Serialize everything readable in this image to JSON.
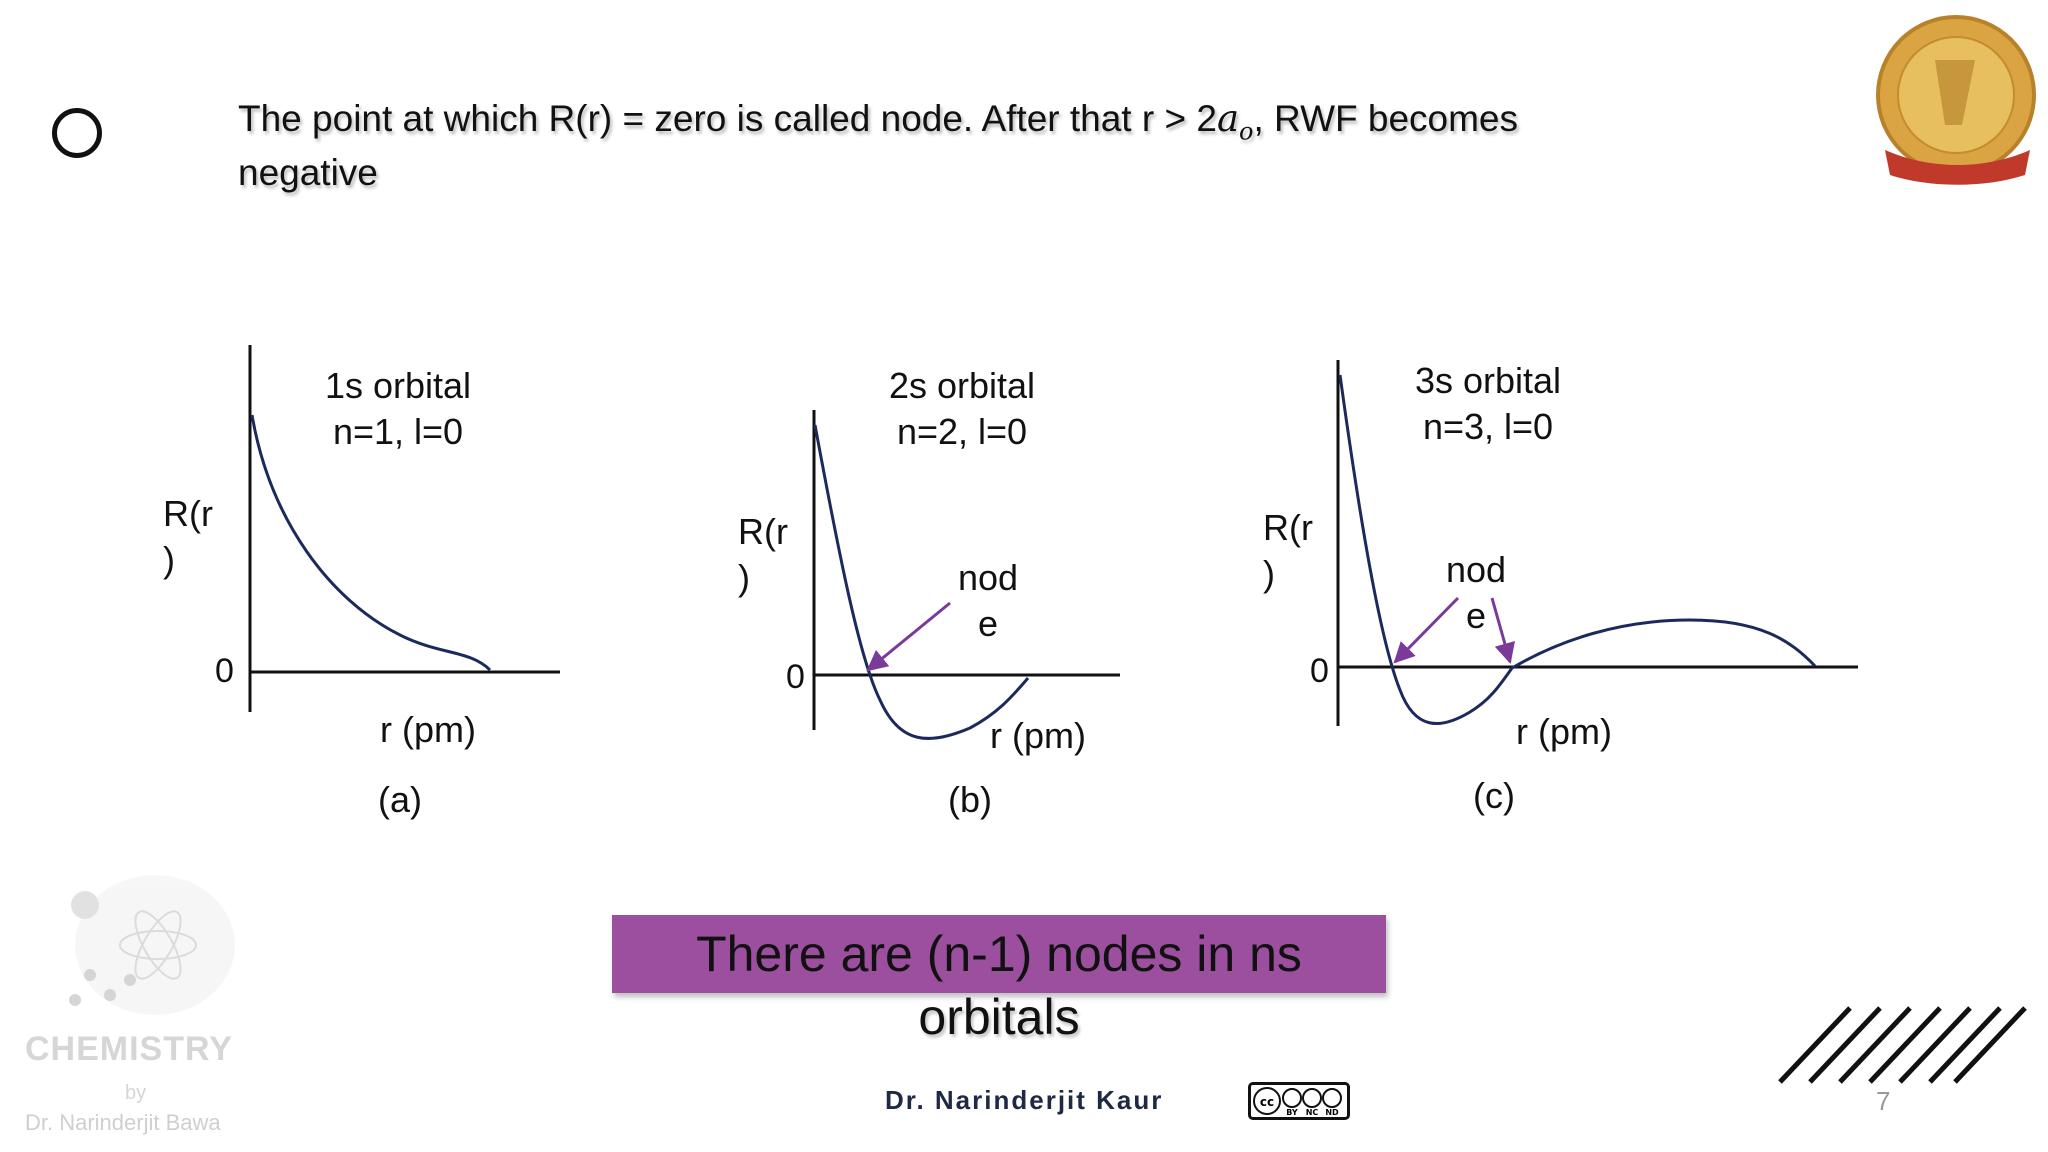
{
  "heading": {
    "line1_pre": "The point at which R(r) = zero is called node. After that r > 2",
    "math_a": "a",
    "math_sub": "o",
    "line1_post": ",  RWF becomes",
    "line2": "negative"
  },
  "plots": [
    {
      "title1": "1s orbital",
      "title2": "n=1, l=0",
      "ylabel1": "R(r",
      "ylabel2": ")",
      "zero": "0",
      "xlabel": "r (pm)",
      "caption": "(a)"
    },
    {
      "title1": "2s orbital",
      "title2": "n=2, l=0",
      "ylabel1": "R(r",
      "ylabel2": ")",
      "zero": "0",
      "xlabel": "r (pm)",
      "caption": "(b)",
      "node1": "nod",
      "node2": "e"
    },
    {
      "title1": "3s orbital",
      "title2": "n=3, l=0",
      "ylabel1": "R(r",
      "ylabel2": ")",
      "zero": "0",
      "xlabel": "r (pm)",
      "caption": "(c)",
      "node1": "nod",
      "node2": "e"
    }
  ],
  "banner": {
    "line1": "There are (n-1) nodes in ns",
    "line2": "orbitals",
    "color": "#9c4f9e"
  },
  "footer": {
    "author": "Dr. Narinderjit Kaur",
    "page": "7",
    "license": {
      "cc": "cc",
      "by": "BY",
      "nc": "NC",
      "nd": "ND"
    }
  },
  "watermark": {
    "title": "CHEMISTRY",
    "by": "by",
    "name": "Dr. Narinderjit Bawa"
  },
  "colors": {
    "curve": "#1b2a5c",
    "arrow": "#7a3a9a"
  }
}
